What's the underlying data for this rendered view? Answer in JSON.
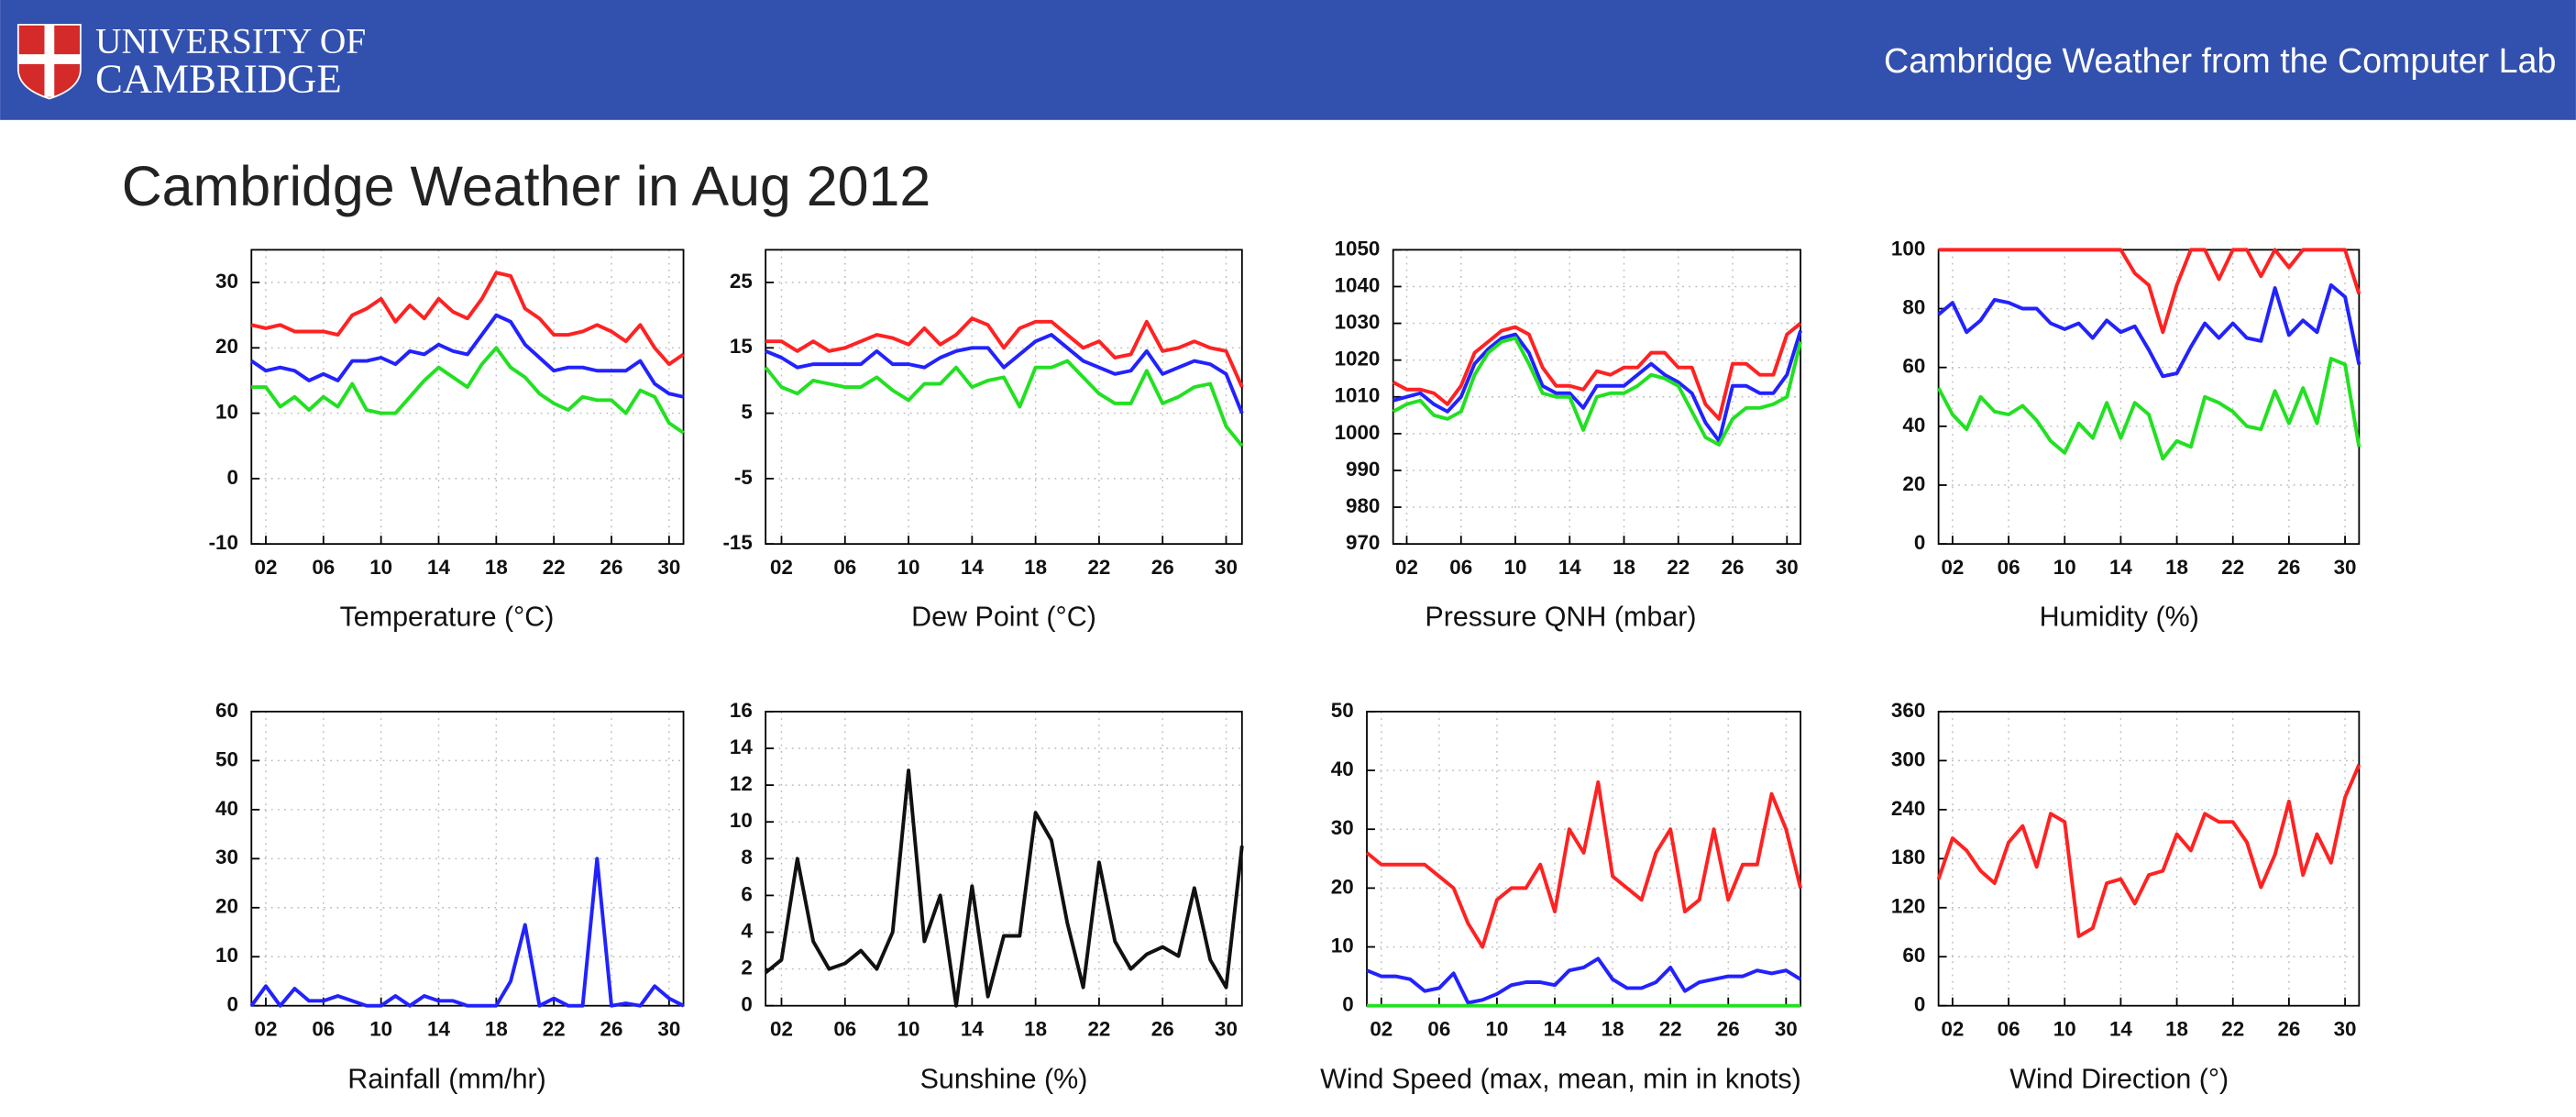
{
  "header": {
    "logo_line1": "UNIVERSITY OF",
    "logo_line2": "CAMBRIDGE",
    "site_title": "Cambridge Weather from the Computer Lab"
  },
  "page_title": "Cambridge Weather in Aug 2012",
  "chart_data": [
    {
      "type": "line",
      "xlabel": "Temperature (°C)",
      "grid": true,
      "x": [
        1,
        2,
        3,
        4,
        5,
        6,
        7,
        8,
        9,
        10,
        11,
        12,
        13,
        14,
        15,
        16,
        17,
        18,
        19,
        20,
        21,
        22,
        23,
        24,
        25,
        26,
        27,
        28,
        29,
        30,
        31
      ],
      "xlim": [
        1,
        31
      ],
      "xticks": [
        {
          "value": 2,
          "label": "02"
        },
        {
          "value": 6,
          "label": "06"
        },
        10,
        14,
        18,
        22,
        26,
        30
      ],
      "ylim": [
        -10,
        35
      ],
      "yticks": [
        -10,
        0,
        10,
        20,
        30
      ],
      "series": [
        {
          "color": "#ff2222",
          "values": [
            23.5,
            23,
            23.5,
            22.5,
            22.5,
            22.5,
            22,
            25,
            26,
            27.5,
            24,
            26.5,
            24.5,
            27.5,
            25.5,
            24.5,
            27.5,
            31.5,
            31,
            26,
            24.5,
            22,
            22,
            22.5,
            23.5,
            22.5,
            21,
            23.5,
            20,
            17.5,
            19
          ]
        },
        {
          "color": "#2222ff",
          "values": [
            18,
            16.5,
            17,
            16.5,
            15,
            16,
            15,
            18,
            18,
            18.5,
            17.5,
            19.5,
            19,
            20.5,
            19.5,
            19,
            22,
            25,
            24,
            20.5,
            18.5,
            16.5,
            17,
            17,
            16.5,
            16.5,
            16.5,
            18,
            14.5,
            13,
            12.5
          ]
        },
        {
          "color": "#22e022",
          "values": [
            14,
            14,
            11,
            12.5,
            10.5,
            12.5,
            11,
            14.5,
            10.5,
            10,
            10,
            12.5,
            15,
            17,
            15.5,
            14,
            17.5,
            20,
            17,
            15.5,
            13,
            11.5,
            10.5,
            12.5,
            12,
            12,
            10,
            13.5,
            12.5,
            8.5,
            7
          ]
        }
      ]
    },
    {
      "type": "line",
      "xlabel": "Dew Point (°C)",
      "grid": true,
      "x": [
        1,
        2,
        3,
        4,
        5,
        6,
        7,
        8,
        9,
        10,
        11,
        12,
        13,
        14,
        15,
        16,
        17,
        18,
        19,
        20,
        21,
        22,
        23,
        24,
        25,
        26,
        27,
        28,
        29,
        30,
        31
      ],
      "xlim": [
        1,
        31
      ],
      "xticks": [
        {
          "value": 2,
          "label": "02"
        },
        {
          "value": 6,
          "label": "06"
        },
        10,
        14,
        18,
        22,
        26,
        30
      ],
      "ylim": [
        -15,
        30
      ],
      "yticks": [
        -15,
        -5,
        5,
        15,
        25
      ],
      "series": [
        {
          "color": "#ff2222",
          "values": [
            16,
            16,
            14.5,
            16,
            14.5,
            15,
            16,
            17,
            16.5,
            15.5,
            18,
            15.5,
            17,
            19.5,
            18.5,
            15,
            18,
            19,
            19,
            17,
            15,
            16,
            13.5,
            14,
            19,
            14.5,
            15,
            16,
            15,
            14.5,
            9
          ]
        },
        {
          "color": "#2222ff",
          "values": [
            14.5,
            13.5,
            12,
            12.5,
            12.5,
            12.5,
            12.5,
            14.5,
            12.5,
            12.5,
            12,
            13.5,
            14.5,
            15,
            15,
            12,
            14,
            16,
            17,
            15,
            13,
            12,
            11,
            11.5,
            14.5,
            11,
            12,
            13,
            12.5,
            11,
            5
          ]
        },
        {
          "color": "#22e022",
          "values": [
            12,
            9,
            8,
            10,
            9.5,
            9,
            9,
            10.5,
            8.5,
            7,
            9.5,
            9.5,
            12,
            9,
            10,
            10.5,
            6,
            12,
            12,
            13,
            10.5,
            8,
            6.5,
            6.5,
            11.5,
            6.5,
            7.5,
            9,
            9.5,
            3,
            0
          ]
        }
      ]
    },
    {
      "type": "line",
      "xlabel": "Pressure QNH (mbar)",
      "grid": true,
      "x": [
        1,
        2,
        3,
        4,
        5,
        6,
        7,
        8,
        9,
        10,
        11,
        12,
        13,
        14,
        15,
        16,
        17,
        18,
        19,
        20,
        21,
        22,
        23,
        24,
        25,
        26,
        27,
        28,
        29,
        30,
        31
      ],
      "xlim": [
        1,
        31
      ],
      "xticks": [
        {
          "value": 2,
          "label": "02"
        },
        {
          "value": 6,
          "label": "06"
        },
        10,
        14,
        18,
        22,
        26,
        30
      ],
      "ylim": [
        970,
        1050
      ],
      "yticks": [
        970,
        980,
        990,
        1000,
        1010,
        1020,
        1030,
        1040,
        1050
      ],
      "series": [
        {
          "color": "#ff2222",
          "values": [
            1014,
            1012,
            1012,
            1011,
            1008,
            1013,
            1022,
            1025,
            1028,
            1029,
            1027,
            1018,
            1013,
            1013,
            1012,
            1017,
            1016,
            1018,
            1018,
            1022,
            1022,
            1018,
            1018,
            1008,
            1004,
            1019,
            1019,
            1016,
            1016,
            1027,
            1030
          ]
        },
        {
          "color": "#2222ff",
          "values": [
            1009,
            1010,
            1011,
            1008,
            1006,
            1010,
            1019,
            1023,
            1026,
            1027,
            1022,
            1013,
            1011,
            1011,
            1007,
            1013,
            1013,
            1013,
            1016,
            1019,
            1016,
            1014,
            1011,
            1003,
            998,
            1013,
            1013,
            1011,
            1011,
            1016,
            1028
          ]
        },
        {
          "color": "#22e022",
          "values": [
            1006,
            1008,
            1009,
            1005,
            1004,
            1006,
            1016,
            1022,
            1025,
            1026,
            1019,
            1011,
            1010,
            1010,
            1001,
            1010,
            1011,
            1011,
            1013,
            1016,
            1015,
            1013,
            1006,
            999,
            997,
            1004,
            1007,
            1007,
            1008,
            1010,
            1025
          ]
        }
      ]
    },
    {
      "type": "line",
      "xlabel": "Humidity (%)",
      "grid": true,
      "x": [
        1,
        2,
        3,
        4,
        5,
        6,
        7,
        8,
        9,
        10,
        11,
        12,
        13,
        14,
        15,
        16,
        17,
        18,
        19,
        20,
        21,
        22,
        23,
        24,
        25,
        26,
        27,
        28,
        29,
        30,
        31
      ],
      "xlim": [
        1,
        31
      ],
      "xticks": [
        {
          "value": 2,
          "label": "02"
        },
        {
          "value": 6,
          "label": "06"
        },
        10,
        14,
        18,
        22,
        26,
        30
      ],
      "ylim": [
        0,
        100
      ],
      "yticks": [
        0,
        20,
        40,
        60,
        80,
        100
      ],
      "series": [
        {
          "color": "#ff2222",
          "values": [
            100,
            100,
            100,
            100,
            100,
            100,
            100,
            100,
            100,
            100,
            100,
            100,
            100,
            100,
            92,
            88,
            72,
            88,
            100,
            100,
            90,
            100,
            100,
            91,
            100,
            94,
            100,
            100,
            100,
            100,
            85
          ]
        },
        {
          "color": "#2222ff",
          "values": [
            78,
            82,
            72,
            76,
            83,
            82,
            80,
            80,
            75,
            73,
            75,
            70,
            76,
            72,
            74,
            66,
            57,
            58,
            67,
            75,
            70,
            75,
            70,
            69,
            87,
            71,
            76,
            72,
            88,
            84,
            61
          ]
        },
        {
          "color": "#22e022",
          "values": [
            53,
            44,
            39,
            50,
            45,
            44,
            47,
            42,
            35,
            31,
            41,
            36,
            48,
            36,
            48,
            44,
            29,
            35,
            33,
            50,
            48,
            45,
            40,
            39,
            52,
            41,
            53,
            41,
            63,
            61,
            33
          ]
        }
      ]
    },
    {
      "type": "line",
      "xlabel": "Rainfall (mm/hr)",
      "grid": true,
      "x": [
        1,
        2,
        3,
        4,
        5,
        6,
        7,
        8,
        9,
        10,
        11,
        12,
        13,
        14,
        15,
        16,
        17,
        18,
        19,
        20,
        21,
        22,
        23,
        24,
        25,
        26,
        27,
        28,
        29,
        30,
        31
      ],
      "xlim": [
        1,
        31
      ],
      "xticks": [
        {
          "value": 2,
          "label": "02"
        },
        {
          "value": 6,
          "label": "06"
        },
        10,
        14,
        18,
        22,
        26,
        30
      ],
      "ylim": [
        0,
        60
      ],
      "yticks": [
        0,
        10,
        20,
        30,
        40,
        50,
        60
      ],
      "series": [
        {
          "color": "#2222ff",
          "values": [
            0,
            4,
            0,
            3.5,
            1,
            1,
            2,
            1,
            0,
            0,
            2,
            0,
            2,
            1,
            1,
            0,
            0,
            0,
            5,
            16.5,
            0,
            1.5,
            0,
            0,
            30,
            0,
            0.5,
            0,
            4,
            1.5,
            0
          ]
        }
      ]
    },
    {
      "type": "line",
      "xlabel": "Sunshine (%)",
      "grid": true,
      "x": [
        1,
        2,
        3,
        4,
        5,
        6,
        7,
        8,
        9,
        10,
        11,
        12,
        13,
        14,
        15,
        16,
        17,
        18,
        19,
        20,
        21,
        22,
        23,
        24,
        25,
        26,
        27,
        28,
        29,
        30,
        31
      ],
      "xlim": [
        1,
        31
      ],
      "xticks": [
        {
          "value": 2,
          "label": "02"
        },
        {
          "value": 6,
          "label": "06"
        },
        10,
        14,
        18,
        22,
        26,
        30
      ],
      "ylim": [
        0,
        16
      ],
      "yticks": [
        0,
        2,
        4,
        6,
        8,
        10,
        12,
        14,
        16
      ],
      "series": [
        {
          "color": "#111111",
          "values": [
            1.8,
            2.5,
            8,
            3.5,
            2,
            2.3,
            3,
            2,
            4,
            12.8,
            3.5,
            6,
            0,
            6.5,
            0.5,
            3.8,
            3.8,
            10.5,
            9,
            4.5,
            1,
            7.8,
            3.5,
            2,
            2.8,
            3.2,
            2.7,
            6.4,
            2.5,
            1,
            8.7
          ]
        }
      ]
    },
    {
      "type": "line",
      "xlabel": "Wind Speed (max, mean, min in knots)",
      "grid": true,
      "x": [
        1,
        2,
        3,
        4,
        5,
        6,
        7,
        8,
        9,
        10,
        11,
        12,
        13,
        14,
        15,
        16,
        17,
        18,
        19,
        20,
        21,
        22,
        23,
        24,
        25,
        26,
        27,
        28,
        29,
        30,
        31
      ],
      "xlim": [
        1,
        31
      ],
      "xticks": [
        {
          "value": 2,
          "label": "02"
        },
        {
          "value": 6,
          "label": "06"
        },
        10,
        14,
        18,
        22,
        26,
        30
      ],
      "ylim": [
        0,
        50
      ],
      "yticks": [
        0,
        10,
        20,
        30,
        40,
        50
      ],
      "series": [
        {
          "color": "#ff2222",
          "values": [
            26,
            24,
            24,
            24,
            24,
            22,
            20,
            14,
            10,
            18,
            20,
            20,
            24,
            16,
            30,
            26,
            38,
            22,
            20,
            18,
            26,
            30,
            16,
            18,
            30,
            18,
            24,
            24,
            36,
            30,
            20
          ]
        },
        {
          "color": "#2222ff",
          "values": [
            6,
            5,
            5,
            4.5,
            2.5,
            3,
            5.5,
            0.5,
            1,
            2,
            3.5,
            4,
            4,
            3.5,
            6,
            6.5,
            8,
            4.5,
            3,
            3,
            4,
            6.5,
            2.5,
            4,
            4.5,
            5,
            5,
            6,
            5.5,
            6,
            4.5
          ]
        },
        {
          "color": "#22e022",
          "values": [
            0,
            0,
            0,
            0,
            0,
            0,
            0,
            0,
            0,
            0,
            0,
            0,
            0,
            0,
            0,
            0,
            0,
            0,
            0,
            0,
            0,
            0,
            0,
            0,
            0,
            0,
            0,
            0,
            0,
            0,
            0
          ]
        }
      ]
    },
    {
      "type": "line",
      "xlabel": "Wind Direction (°)",
      "grid": true,
      "x": [
        1,
        2,
        3,
        4,
        5,
        6,
        7,
        8,
        9,
        10,
        11,
        12,
        13,
        14,
        15,
        16,
        17,
        18,
        19,
        20,
        21,
        22,
        23,
        24,
        25,
        26,
        27,
        28,
        29,
        30,
        31
      ],
      "xlim": [
        1,
        31
      ],
      "xticks": [
        {
          "value": 2,
          "label": "02"
        },
        {
          "value": 6,
          "label": "06"
        },
        10,
        14,
        18,
        22,
        26,
        30
      ],
      "ylim": [
        0,
        360
      ],
      "yticks": [
        0,
        60,
        120,
        180,
        240,
        300,
        360
      ],
      "series": [
        {
          "color": "#ff2222",
          "values": [
            155,
            205,
            190,
            165,
            150,
            200,
            220,
            170,
            235,
            225,
            85,
            95,
            150,
            155,
            125,
            160,
            165,
            210,
            190,
            235,
            225,
            225,
            200,
            145,
            185,
            250,
            160,
            210,
            175,
            255,
            295
          ]
        }
      ]
    }
  ]
}
